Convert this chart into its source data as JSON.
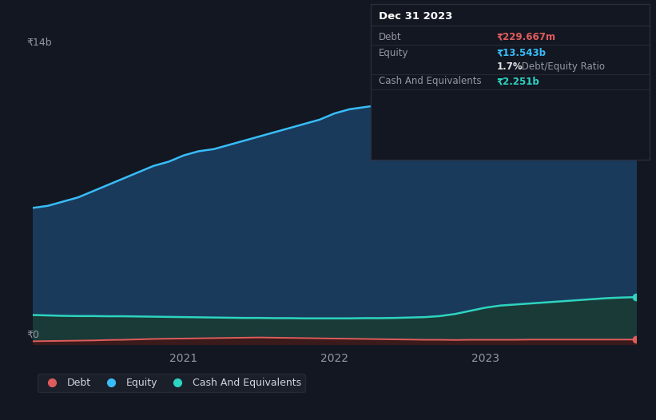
{
  "background_color": "#131722",
  "plot_bg_color": "#131722",
  "grid_color": "#2a2e39",
  "title_box": {
    "date": "Dec 31 2023",
    "debt_label": "Debt",
    "debt_value": "₹229.667m",
    "equity_label": "Equity",
    "equity_value": "₹13.543b",
    "ratio_text": "1.7% Debt/Equity Ratio",
    "cash_label": "Cash And Equivalents",
    "cash_value": "₹2.251b",
    "debt_color": "#e05c5c",
    "equity_color": "#38bdf8",
    "cash_color": "#2dd4bf",
    "ratio_highlight_color": "#e0e0e0",
    "box_bg": "#131722",
    "box_border": "#2a2e39",
    "label_color": "#9598a1",
    "value_white_color": "#d1d4dc"
  },
  "ylabel_text": "₹14b",
  "y0_text": "₹0",
  "ylim": [
    0,
    14
  ],
  "x_ticks": [
    2021,
    2022,
    2023
  ],
  "equity_line_color": "#38bdf8",
  "equity_fill_color": "#1a3a5c",
  "debt_line_color": "#e05c5c",
  "debt_fill_color": "#3a1a1a",
  "cash_line_color": "#2dd4bf",
  "cash_fill_color": "#1a3a38",
  "legend": [
    {
      "label": "Debt",
      "color": "#e05c5c"
    },
    {
      "label": "Equity",
      "color": "#38bdf8"
    },
    {
      "label": "Cash And Equivalents",
      "color": "#2dd4bf"
    }
  ],
  "x_data": [
    2020.0,
    2020.1,
    2020.2,
    2020.3,
    2020.4,
    2020.5,
    2020.6,
    2020.7,
    2020.8,
    2020.9,
    2021.0,
    2021.1,
    2021.2,
    2021.3,
    2021.4,
    2021.5,
    2021.6,
    2021.7,
    2021.8,
    2021.9,
    2022.0,
    2022.1,
    2022.2,
    2022.3,
    2022.4,
    2022.5,
    2022.6,
    2022.7,
    2022.8,
    2022.9,
    2023.0,
    2023.1,
    2023.2,
    2023.3,
    2023.4,
    2023.5,
    2023.6,
    2023.7,
    2023.8,
    2023.9,
    2024.0
  ],
  "equity_data": [
    6.5,
    6.6,
    6.8,
    7.0,
    7.3,
    7.6,
    7.9,
    8.2,
    8.5,
    8.7,
    9.0,
    9.2,
    9.3,
    9.5,
    9.7,
    9.9,
    10.1,
    10.3,
    10.5,
    10.7,
    11.0,
    11.2,
    11.3,
    11.4,
    11.5,
    11.7,
    11.8,
    11.9,
    12.0,
    12.1,
    12.3,
    12.4,
    12.5,
    12.6,
    12.8,
    12.9,
    13.0,
    13.1,
    13.3,
    13.4,
    13.543
  ],
  "debt_data": [
    0.15,
    0.16,
    0.17,
    0.18,
    0.19,
    0.21,
    0.22,
    0.24,
    0.26,
    0.27,
    0.28,
    0.29,
    0.3,
    0.31,
    0.32,
    0.33,
    0.32,
    0.31,
    0.3,
    0.29,
    0.28,
    0.27,
    0.26,
    0.25,
    0.24,
    0.23,
    0.22,
    0.22,
    0.21,
    0.22,
    0.22,
    0.22,
    0.22,
    0.23,
    0.23,
    0.23,
    0.23,
    0.23,
    0.23,
    0.23,
    0.23
  ],
  "cash_data": [
    1.4,
    1.38,
    1.36,
    1.35,
    1.35,
    1.34,
    1.34,
    1.33,
    1.32,
    1.31,
    1.3,
    1.29,
    1.28,
    1.27,
    1.26,
    1.26,
    1.25,
    1.25,
    1.24,
    1.24,
    1.24,
    1.24,
    1.25,
    1.25,
    1.26,
    1.28,
    1.3,
    1.35,
    1.45,
    1.6,
    1.75,
    1.85,
    1.9,
    1.95,
    2.0,
    2.05,
    2.1,
    2.15,
    2.2,
    2.23,
    2.251
  ]
}
